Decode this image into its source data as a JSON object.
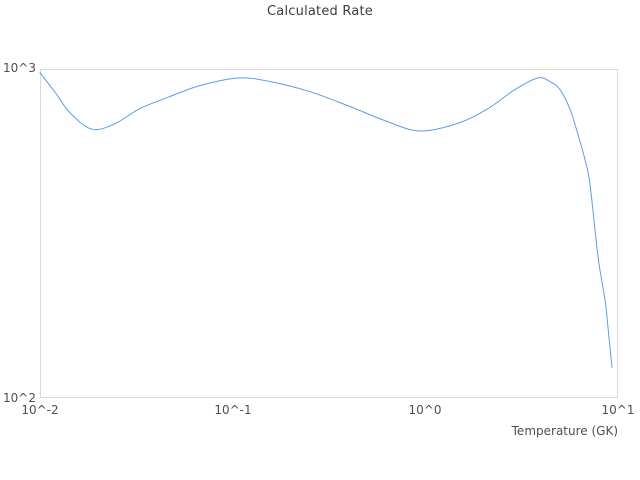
{
  "chart_data": {
    "type": "line",
    "title": "Calculated Rate",
    "xlabel": "Temperature (GK)",
    "ylabel": "",
    "x_scale": "log",
    "y_scale": "log",
    "xlim": [
      0.01,
      10
    ],
    "ylim": [
      100,
      1000
    ],
    "x_tick_labels": [
      "10^-2",
      "10^-1",
      "10^0",
      "10^1"
    ],
    "x_tick_values": [
      0.01,
      0.1,
      1,
      10
    ],
    "y_tick_labels": [
      "10^2",
      "10^3"
    ],
    "y_tick_values": [
      100,
      1000
    ],
    "grid": false,
    "legend": false,
    "line_color": "#5b9de5",
    "line_width": 1,
    "series": [
      {
        "name": "Calculated Rate",
        "x": [
          0.01,
          0.012,
          0.0143,
          0.0186,
          0.0245,
          0.033,
          0.047,
          0.068,
          0.107,
          0.156,
          0.252,
          0.406,
          0.617,
          0.938,
          1.51,
          2.16,
          2.92,
          3.84,
          4.43,
          5.0,
          5.64,
          6.2,
          6.74,
          7.16,
          7.87,
          8.56,
          8.87,
          9.31
        ],
        "y": [
          975,
          848,
          737,
          656,
          682,
          758,
          824,
          891,
          939,
          916,
          853,
          769,
          697,
          648,
          687,
          764,
          866,
          939,
          916,
          866,
          753,
          632,
          530,
          445,
          269,
          199,
          164,
          124
        ]
      }
    ]
  }
}
